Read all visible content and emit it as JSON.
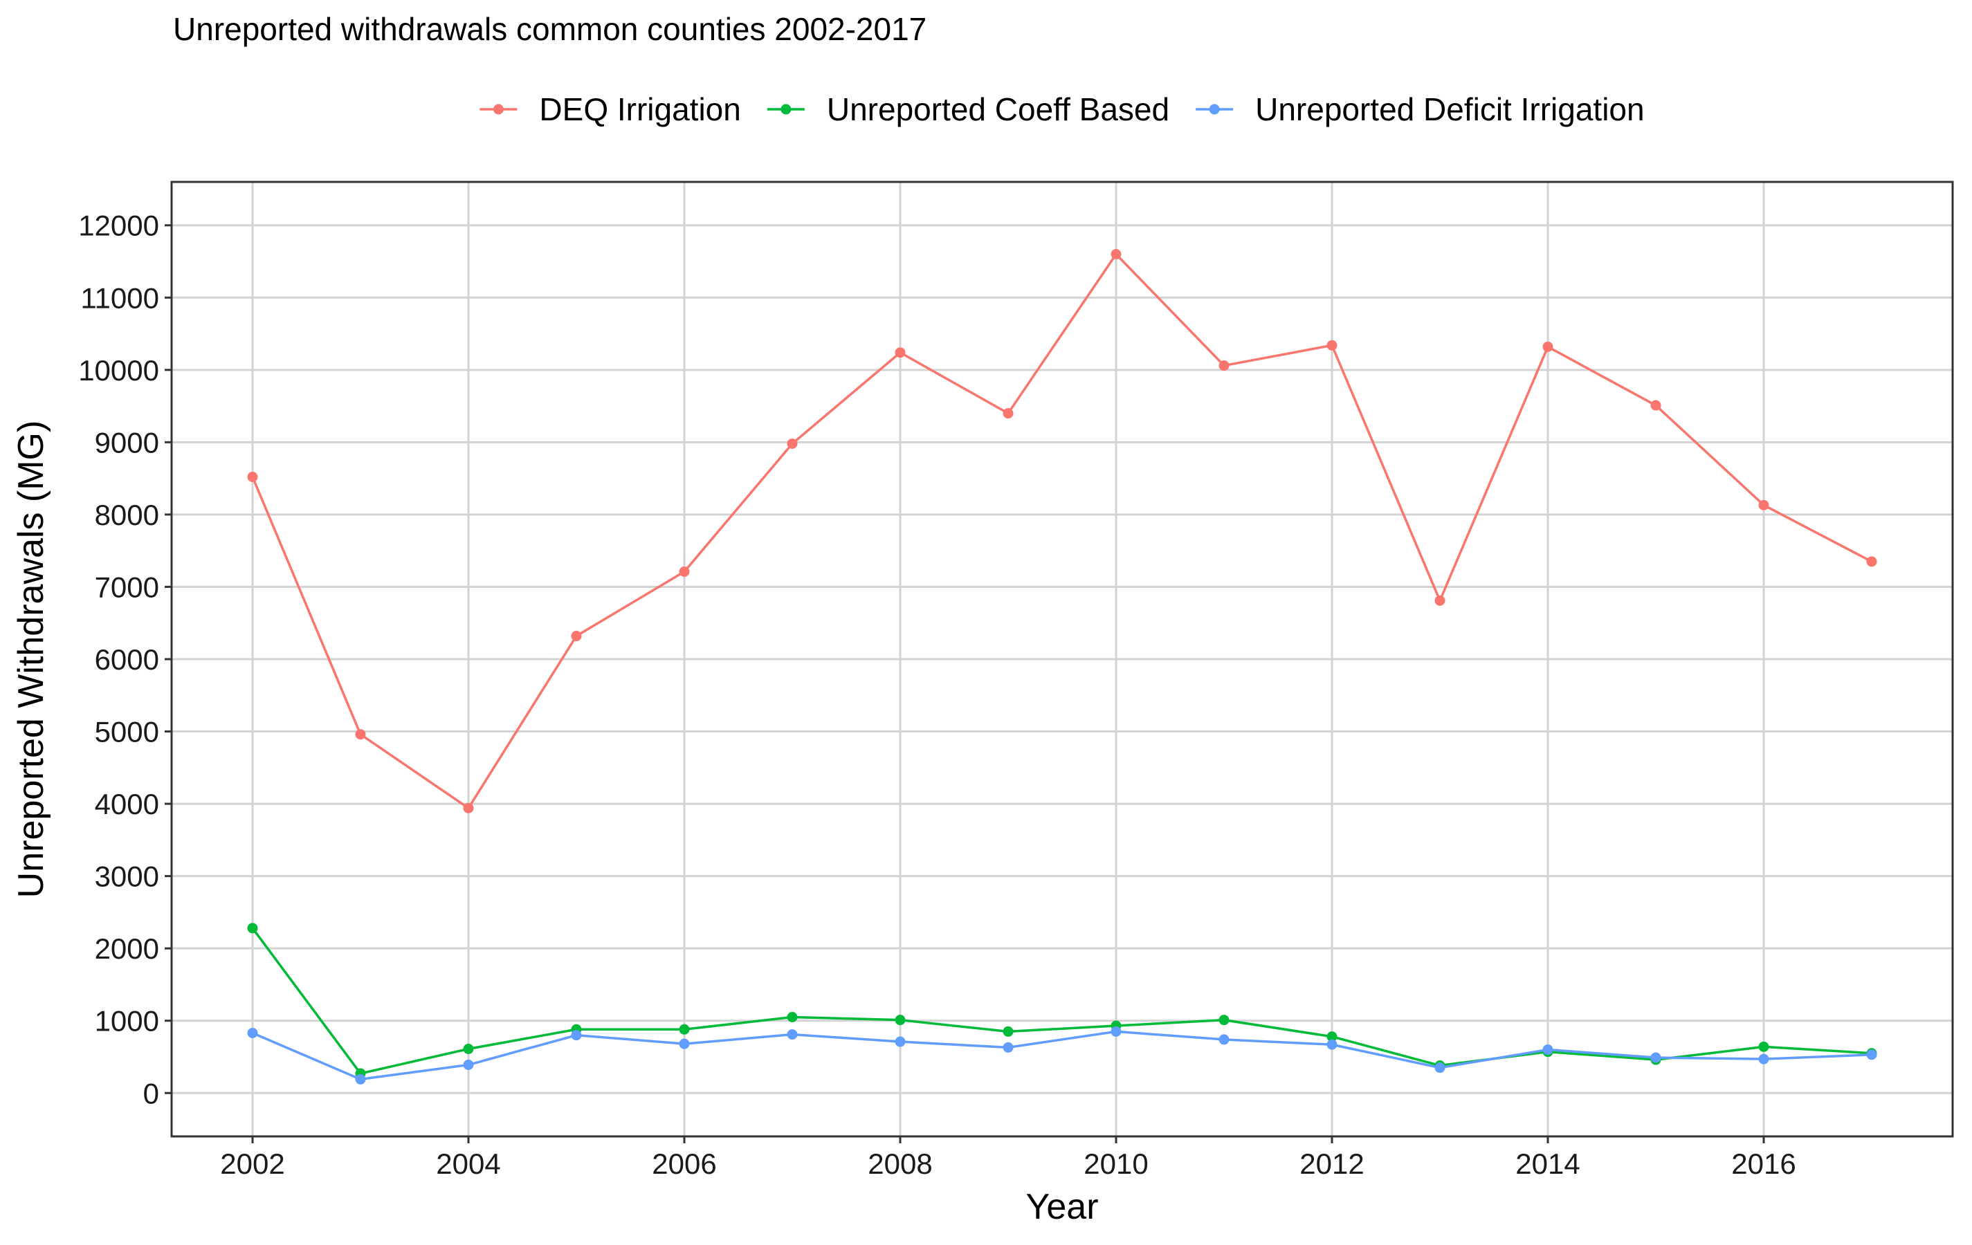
{
  "chart_data": {
    "type": "line",
    "title": "Unreported withdrawals common counties 2002-2017",
    "xlabel": "Year",
    "ylabel": "Unreported Withdrawals (MG)",
    "x": [
      2002,
      2003,
      2004,
      2005,
      2006,
      2007,
      2008,
      2009,
      2010,
      2011,
      2012,
      2013,
      2014,
      2015,
      2016,
      2017
    ],
    "xlim": [
      2001.25,
      2017.75
    ],
    "ylim": [
      -600,
      12600
    ],
    "x_ticks": [
      2002,
      2004,
      2006,
      2008,
      2010,
      2012,
      2014,
      2016
    ],
    "y_ticks": [
      0,
      1000,
      2000,
      3000,
      4000,
      5000,
      6000,
      7000,
      8000,
      9000,
      10000,
      11000,
      12000
    ],
    "grid": true,
    "legend_position": "top",
    "series": [
      {
        "name": "DEQ Irrigation",
        "color": "#F8766D",
        "values": [
          8520,
          4960,
          3940,
          6320,
          7210,
          8980,
          10240,
          9400,
          11600,
          10060,
          10340,
          6810,
          10320,
          9510,
          8130,
          7350
        ]
      },
      {
        "name": "Unreported Coeff Based",
        "color": "#00BA38",
        "values": [
          2280,
          270,
          610,
          880,
          880,
          1050,
          1010,
          850,
          930,
          1010,
          780,
          380,
          570,
          460,
          640,
          550
        ]
      },
      {
        "name": "Unreported Deficit Irrigation",
        "color": "#619CFF",
        "values": [
          830,
          190,
          390,
          800,
          680,
          810,
          710,
          630,
          850,
          740,
          670,
          350,
          600,
          490,
          470,
          530
        ]
      }
    ]
  }
}
